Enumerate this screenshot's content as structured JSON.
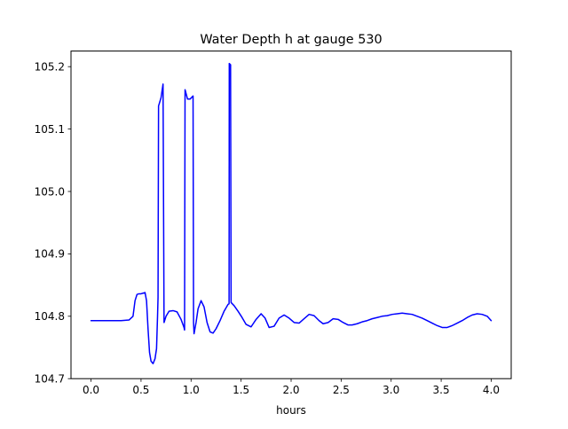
{
  "chart_data": {
    "type": "line",
    "title": "Water Depth h at gauge 530",
    "xlabel": "hours",
    "ylabel": "",
    "xlim": [
      -0.2,
      4.2
    ],
    "ylim": [
      104.7,
      105.225
    ],
    "x_ticks": [
      0.0,
      0.5,
      1.0,
      1.5,
      2.0,
      2.5,
      3.0,
      3.5,
      4.0
    ],
    "x_tick_labels": [
      "0.0",
      "0.5",
      "1.0",
      "1.5",
      "2.0",
      "2.5",
      "3.0",
      "3.5",
      "4.0"
    ],
    "y_ticks": [
      104.7,
      104.8,
      104.9,
      105.0,
      105.1,
      105.2
    ],
    "y_tick_labels": [
      "104.7",
      "104.8",
      "104.9",
      "105.0",
      "105.1",
      "105.2"
    ],
    "grid": false,
    "legend": "none",
    "colors": {
      "line": "#0000ff",
      "axes": "#000000",
      "background": "#ffffff"
    },
    "series": [
      {
        "x": [
          0.0,
          0.1,
          0.2,
          0.3,
          0.38,
          0.42,
          0.44,
          0.46,
          0.48,
          0.5,
          0.52,
          0.54,
          0.555,
          0.57,
          0.585,
          0.6,
          0.62,
          0.64,
          0.655,
          0.665,
          0.67,
          0.675,
          0.7,
          0.72,
          0.722,
          0.73,
          0.75,
          0.78,
          0.82,
          0.86,
          0.9,
          0.93,
          0.935,
          0.94,
          0.965,
          0.99,
          1.02,
          1.025,
          1.03,
          1.05,
          1.07,
          1.1,
          1.13,
          1.16,
          1.19,
          1.22,
          1.25,
          1.29,
          1.33,
          1.37,
          1.38,
          1.382,
          1.395,
          1.4,
          1.43,
          1.47,
          1.51,
          1.55,
          1.6,
          1.65,
          1.7,
          1.74,
          1.78,
          1.83,
          1.88,
          1.93,
          1.98,
          2.03,
          2.08,
          2.13,
          2.18,
          2.23,
          2.28,
          2.32,
          2.37,
          2.42,
          2.47,
          2.52,
          2.57,
          2.61,
          2.66,
          2.71,
          2.76,
          2.81,
          2.86,
          2.91,
          2.96,
          3.01,
          3.06,
          3.11,
          3.16,
          3.21,
          3.26,
          3.31,
          3.36,
          3.41,
          3.46,
          3.51,
          3.56,
          3.61,
          3.66,
          3.71,
          3.76,
          3.81,
          3.86,
          3.91,
          3.96,
          4.0
        ],
        "y": [
          104.793,
          104.793,
          104.793,
          104.793,
          104.794,
          104.8,
          104.825,
          104.835,
          104.836,
          104.836,
          104.837,
          104.838,
          104.825,
          104.78,
          104.742,
          104.728,
          104.724,
          104.732,
          104.748,
          104.8,
          104.83,
          105.137,
          105.15,
          105.172,
          105.1,
          104.79,
          104.8,
          104.808,
          104.809,
          104.807,
          104.795,
          104.782,
          104.778,
          105.163,
          105.148,
          105.148,
          105.153,
          104.79,
          104.772,
          104.79,
          104.812,
          104.825,
          104.815,
          104.79,
          104.775,
          104.773,
          104.78,
          104.793,
          104.808,
          104.819,
          104.82,
          105.205,
          105.203,
          104.822,
          104.817,
          104.808,
          104.798,
          104.787,
          104.783,
          104.795,
          104.804,
          104.797,
          104.782,
          104.784,
          104.797,
          104.802,
          104.797,
          104.79,
          104.789,
          104.796,
          104.803,
          104.801,
          104.793,
          104.788,
          104.79,
          104.796,
          104.795,
          104.79,
          104.786,
          104.786,
          104.788,
          104.791,
          104.793,
          104.796,
          104.798,
          104.8,
          104.801,
          104.803,
          104.804,
          104.805,
          104.804,
          104.803,
          104.8,
          104.797,
          104.793,
          104.789,
          104.785,
          104.782,
          104.782,
          104.785,
          104.789,
          104.793,
          104.798,
          104.802,
          104.804,
          104.803,
          104.8,
          104.793
        ]
      }
    ]
  }
}
